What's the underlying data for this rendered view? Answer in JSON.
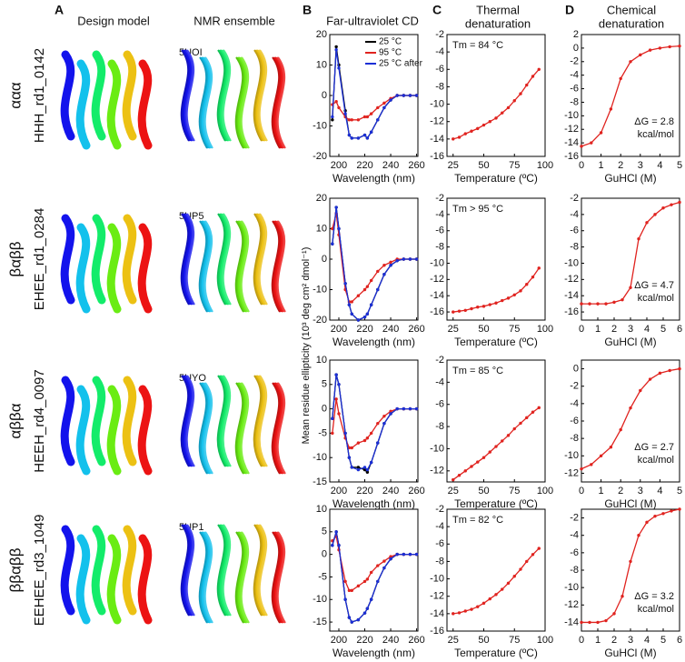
{
  "headers": {
    "A": "A",
    "design_model": "Design model",
    "nmr_ensemble": "NMR ensemble",
    "B": "B",
    "cd": "Far-ultraviolet CD",
    "C": "C",
    "thermal": [
      "Thermal",
      "denaturation"
    ],
    "D": "D",
    "chemical": [
      "Chemical",
      "denaturation"
    ]
  },
  "rows": [
    {
      "topology": "ααα",
      "design": "HHH_rd1_0142",
      "pdb": "5UOI"
    },
    {
      "topology": "βαββ",
      "design": "EHEE_rd1_0284",
      "pdb": "5UP5"
    },
    {
      "topology": "αββα",
      "design": "HEEH_rd4_0097",
      "pdb": "5UYO"
    },
    {
      "topology": "ββαββ",
      "design": "EEHEE_rd3_1049",
      "pdb": "5UP1"
    }
  ],
  "y_label": "Mean residue ellipticity (10³ deg cm² dmol⁻¹)",
  "chart_data": [
    {
      "type": "line",
      "x": [
        195,
        198,
        200,
        205,
        208,
        210,
        215,
        220,
        222,
        225,
        230,
        235,
        240,
        245,
        250,
        255,
        260
      ],
      "xlim": [
        193,
        261
      ],
      "xticks": [
        200,
        220,
        240,
        260
      ],
      "ylim": [
        -20,
        20
      ],
      "yticks": [
        20,
        10,
        0,
        -10,
        -20
      ],
      "x_label": "Wavelength (nm)",
      "legend": "upper right",
      "series": [
        {
          "name": "25 °C",
          "color": "#000000",
          "values": [
            -8,
            16,
            10,
            -5,
            -13,
            -14,
            -14,
            -13,
            -14,
            -12,
            -8,
            -4,
            -1.5,
            0,
            0,
            0,
            0
          ]
        },
        {
          "name": "95 °C",
          "color": "#e0231f",
          "values": [
            -3,
            -2,
            -4,
            -7,
            -8,
            -8,
            -8,
            -7,
            -7,
            -6,
            -4,
            -2.5,
            -1,
            0,
            0,
            0,
            0
          ]
        },
        {
          "name": "25 °C after",
          "color": "#1b2fd6",
          "values": [
            -7,
            15,
            9,
            -6,
            -13,
            -14,
            -14,
            -13,
            -14,
            -12,
            -8,
            -4,
            -1.5,
            0,
            0,
            0,
            0
          ]
        }
      ]
    },
    {
      "type": "line",
      "x": [
        25,
        30,
        35,
        40,
        45,
        50,
        55,
        60,
        65,
        70,
        75,
        80,
        85,
        90,
        95
      ],
      "xlim": [
        20,
        100
      ],
      "xticks": [
        25,
        50,
        75,
        100
      ],
      "ylim": [
        -16,
        -2
      ],
      "yticks": [
        -2,
        -4,
        -6,
        -8,
        -10,
        -12,
        -14,
        -16
      ],
      "x_label": "Temperature (ºC)",
      "annotations": [
        "Tm = 84 °C"
      ],
      "series": [
        {
          "color": "#e0231f",
          "values": [
            -14,
            -13.8,
            -13.4,
            -13.1,
            -12.8,
            -12.4,
            -12,
            -11.6,
            -11,
            -10.4,
            -9.6,
            -8.8,
            -7.8,
            -6.8,
            -6
          ]
        }
      ]
    },
    {
      "type": "line",
      "x": [
        0,
        0.5,
        1,
        1.5,
        2,
        2.5,
        3,
        3.5,
        4,
        4.5,
        5
      ],
      "xlim": [
        0,
        5
      ],
      "xticks": [
        0,
        1,
        2,
        3,
        4,
        5
      ],
      "ylim": [
        -16,
        2
      ],
      "yticks": [
        2,
        0,
        -2,
        -4,
        -6,
        -8,
        -10,
        -12,
        -14,
        -16
      ],
      "x_label": "GuHCl (M)",
      "annotations": [
        "ΔG = 2.8",
        "kcal/mol"
      ],
      "series": [
        {
          "color": "#e0231f",
          "values": [
            -14.5,
            -14,
            -12.5,
            -9,
            -4.5,
            -2,
            -1,
            -0.3,
            0,
            0.2,
            0.3
          ]
        }
      ]
    },
    {
      "type": "line",
      "x": [
        195,
        198,
        200,
        205,
        208,
        210,
        215,
        220,
        222,
        225,
        230,
        235,
        240,
        245,
        250,
        255,
        260
      ],
      "xlim": [
        193,
        261
      ],
      "xticks": [
        200,
        220,
        240,
        260
      ],
      "ylim": [
        -20,
        20
      ],
      "yticks": [
        20,
        10,
        0,
        -10,
        -20
      ],
      "x_label": "Wavelength (nm)",
      "series": [
        {
          "color": "#000000",
          "values": [
            5,
            17,
            10,
            -8,
            -15,
            -18,
            -20,
            -19,
            -18,
            -15,
            -10,
            -5,
            -2,
            -0.5,
            0,
            0,
            0
          ]
        },
        {
          "color": "#e0231f",
          "values": [
            10,
            15,
            8,
            -10,
            -14,
            -14,
            -12,
            -10,
            -9,
            -7,
            -4,
            -2,
            -1,
            0,
            0,
            0,
            0
          ]
        },
        {
          "color": "#1b2fd6",
          "values": [
            5,
            17,
            10,
            -8,
            -15,
            -18,
            -20,
            -19,
            -18,
            -15,
            -10,
            -5,
            -2,
            -0.5,
            0,
            0,
            0
          ]
        }
      ]
    },
    {
      "type": "line",
      "x": [
        25,
        30,
        35,
        40,
        45,
        50,
        55,
        60,
        65,
        70,
        75,
        80,
        85,
        90,
        95
      ],
      "xlim": [
        20,
        100
      ],
      "xticks": [
        25,
        50,
        75,
        100
      ],
      "ylim": [
        -17,
        -2
      ],
      "yticks": [
        -2,
        -4,
        -6,
        -8,
        -10,
        -12,
        -14,
        -16
      ],
      "x_label": "Temperature (ºC)",
      "annotations": [
        "Tm > 95 °C"
      ],
      "series": [
        {
          "color": "#e0231f",
          "values": [
            -16,
            -15.9,
            -15.8,
            -15.6,
            -15.4,
            -15.3,
            -15.1,
            -14.9,
            -14.6,
            -14.3,
            -13.9,
            -13.4,
            -12.6,
            -11.7,
            -10.6
          ]
        }
      ]
    },
    {
      "type": "line",
      "x": [
        0,
        0.5,
        1,
        1.5,
        2,
        2.5,
        3,
        3.5,
        4,
        4.5,
        5,
        5.5,
        6
      ],
      "xlim": [
        0,
        6
      ],
      "xticks": [
        0,
        1,
        2,
        3,
        4,
        5,
        6
      ],
      "ylim": [
        -17,
        -2
      ],
      "yticks": [
        -2,
        -4,
        -6,
        -8,
        -10,
        -12,
        -14,
        -16
      ],
      "x_label": "GuHCl (M)",
      "annotations": [
        "ΔG = 4.7",
        "kcal/mol"
      ],
      "series": [
        {
          "color": "#e0231f",
          "values": [
            -15,
            -15,
            -15,
            -15,
            -14.8,
            -14.5,
            -13,
            -7,
            -5,
            -4,
            -3.2,
            -2.8,
            -2.5
          ]
        }
      ]
    },
    {
      "type": "line",
      "x": [
        195,
        198,
        200,
        205,
        208,
        210,
        215,
        220,
        222,
        225,
        230,
        235,
        240,
        245,
        250,
        255,
        260
      ],
      "xlim": [
        193,
        261
      ],
      "xticks": [
        200,
        220,
        240,
        260
      ],
      "ylim": [
        -15,
        10
      ],
      "yticks": [
        10,
        5,
        0,
        -5,
        -10,
        -15
      ],
      "x_label": "Wavelength (nm)",
      "series": [
        {
          "color": "#000000",
          "values": [
            -2,
            7,
            5,
            -5,
            -10,
            -12,
            -12,
            -12.5,
            -13,
            -11,
            -7,
            -3,
            -1,
            0,
            0,
            0,
            0
          ]
        },
        {
          "color": "#e0231f",
          "values": [
            -5,
            2,
            -1,
            -6,
            -8,
            -8,
            -7,
            -6.5,
            -6,
            -5,
            -3,
            -1.5,
            -0.5,
            0,
            0,
            0,
            0
          ]
        },
        {
          "color": "#1b2fd6",
          "values": [
            -2,
            7,
            5,
            -5,
            -10,
            -12,
            -12.5,
            -12,
            -12.5,
            -11,
            -7,
            -3,
            -1,
            0,
            0,
            0,
            0
          ]
        }
      ]
    },
    {
      "type": "line",
      "x": [
        25,
        30,
        35,
        40,
        45,
        50,
        55,
        60,
        65,
        70,
        75,
        80,
        85,
        90,
        95
      ],
      "xlim": [
        20,
        100
      ],
      "xticks": [
        25,
        50,
        75,
        100
      ],
      "ylim": [
        -13,
        -2
      ],
      "yticks": [
        -2,
        -4,
        -6,
        -8,
        -10,
        -12
      ],
      "x_label": "Temperature (ºC)",
      "annotations": [
        "Tm = 85 °C"
      ],
      "series": [
        {
          "color": "#e0231f",
          "values": [
            -12.8,
            -12.4,
            -12,
            -11.6,
            -11.2,
            -10.8,
            -10.3,
            -9.8,
            -9.3,
            -8.8,
            -8.2,
            -7.7,
            -7.2,
            -6.7,
            -6.3
          ]
        }
      ]
    },
    {
      "type": "line",
      "x": [
        0,
        0.5,
        1,
        1.5,
        2,
        2.5,
        3,
        3.5,
        4,
        4.5,
        5
      ],
      "xlim": [
        0,
        5
      ],
      "xticks": [
        0,
        1,
        2,
        3,
        4,
        5
      ],
      "ylim": [
        -13,
        1
      ],
      "yticks": [
        0,
        -2,
        -4,
        -6,
        -8,
        -10,
        -12
      ],
      "x_label": "GuHCl (M)",
      "annotations": [
        "ΔG = 2.7",
        "kcal/mol"
      ],
      "series": [
        {
          "color": "#e0231f",
          "values": [
            -11.5,
            -11,
            -10,
            -9,
            -7,
            -4.5,
            -2.5,
            -1.2,
            -0.5,
            -0.2,
            0
          ]
        }
      ]
    },
    {
      "type": "line",
      "x": [
        195,
        198,
        200,
        205,
        208,
        210,
        215,
        220,
        222,
        225,
        230,
        235,
        240,
        245,
        250,
        255,
        260
      ],
      "xlim": [
        193,
        261
      ],
      "xticks": [
        200,
        220,
        240,
        260
      ],
      "ylim": [
        -17,
        10
      ],
      "yticks": [
        10,
        5,
        0,
        -5,
        -10,
        -15
      ],
      "x_label": "Wavelength (nm)",
      "series": [
        {
          "color": "#000000",
          "values": [
            2,
            5,
            2,
            -10,
            -14,
            -15,
            -14.5,
            -13,
            -12,
            -10,
            -6,
            -3,
            -1,
            0,
            0,
            0,
            0
          ]
        },
        {
          "color": "#e0231f",
          "values": [
            3,
            4,
            1,
            -6,
            -8,
            -8,
            -7,
            -6,
            -5.5,
            -4,
            -2.5,
            -1.5,
            -0.5,
            0,
            0,
            0,
            0
          ]
        },
        {
          "color": "#1b2fd6",
          "values": [
            2,
            5,
            2,
            -10,
            -14,
            -15,
            -14.5,
            -13,
            -12,
            -10,
            -6,
            -3,
            -1,
            0,
            0,
            0,
            0
          ]
        }
      ]
    },
    {
      "type": "line",
      "x": [
        25,
        30,
        35,
        40,
        45,
        50,
        55,
        60,
        65,
        70,
        75,
        80,
        85,
        90,
        95
      ],
      "xlim": [
        20,
        100
      ],
      "xticks": [
        25,
        50,
        75,
        100
      ],
      "ylim": [
        -16,
        -2
      ],
      "yticks": [
        -2,
        -4,
        -6,
        -8,
        -10,
        -12,
        -14,
        -16
      ],
      "x_label": "Temperature (ºC)",
      "annotations": [
        "Tm = 82 °C"
      ],
      "series": [
        {
          "color": "#e0231f",
          "values": [
            -14,
            -13.9,
            -13.7,
            -13.5,
            -13.2,
            -12.8,
            -12.3,
            -11.8,
            -11.2,
            -10.5,
            -9.7,
            -8.9,
            -8,
            -7.2,
            -6.5
          ]
        }
      ]
    },
    {
      "type": "line",
      "x": [
        0,
        0.5,
        1,
        1.5,
        2,
        2.5,
        3,
        3.5,
        4,
        4.5,
        5,
        5.5,
        6
      ],
      "xlim": [
        0,
        6
      ],
      "xticks": [
        0,
        1,
        2,
        3,
        4,
        5,
        6
      ],
      "ylim": [
        -15,
        -1
      ],
      "yticks": [
        -2,
        -4,
        -6,
        -8,
        -10,
        -12,
        -14
      ],
      "x_label": "GuHCl (M)",
      "annotations": [
        "ΔG = 3.2",
        "kcal/mol"
      ],
      "series": [
        {
          "color": "#e0231f",
          "values": [
            -14,
            -14,
            -14,
            -13.8,
            -13,
            -11,
            -7,
            -4,
            -2.5,
            -1.8,
            -1.5,
            -1.2,
            -1
          ]
        }
      ]
    }
  ]
}
